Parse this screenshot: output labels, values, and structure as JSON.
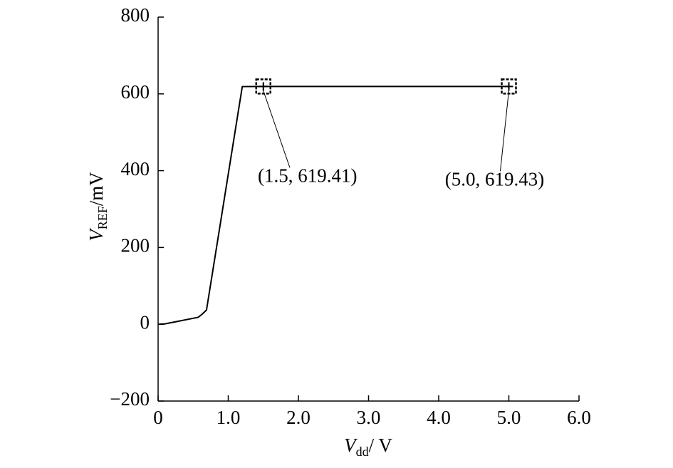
{
  "chart_data": {
    "type": "line",
    "x_label": [
      "V",
      "dd",
      "/ V"
    ],
    "y_label": [
      "V",
      "REF",
      "/mV"
    ],
    "x": [
      0,
      0.1,
      0.57,
      0.62,
      0.69,
      1.2,
      1.5,
      5.0
    ],
    "series": [
      {
        "color": "#000000",
        "values": [
          0,
          1,
          18,
          25,
          37,
          619,
          619.41,
          619.43
        ]
      }
    ],
    "xlim": [
      0,
      6
    ],
    "ylim": [
      -200,
      800
    ],
    "xticks": [
      0,
      {
        "value": 1,
        "label": "1.0"
      },
      {
        "value": 2,
        "label": "2.0"
      },
      {
        "value": 3,
        "label": "3.0"
      },
      {
        "value": 4,
        "label": "4.0"
      },
      {
        "value": 5,
        "label": "5.0"
      },
      {
        "value": 6,
        "label": "6.0"
      }
    ],
    "yticks": [
      {
        "value": -200,
        "label": "−200"
      },
      0,
      200,
      400,
      600,
      800
    ],
    "annotations": [
      {
        "x": 1.5,
        "y": 619.41,
        "label": "(1.5, 619.41)"
      },
      {
        "x": 5.0,
        "y": 619.43,
        "label": "(5.0, 619.43)"
      }
    ]
  }
}
